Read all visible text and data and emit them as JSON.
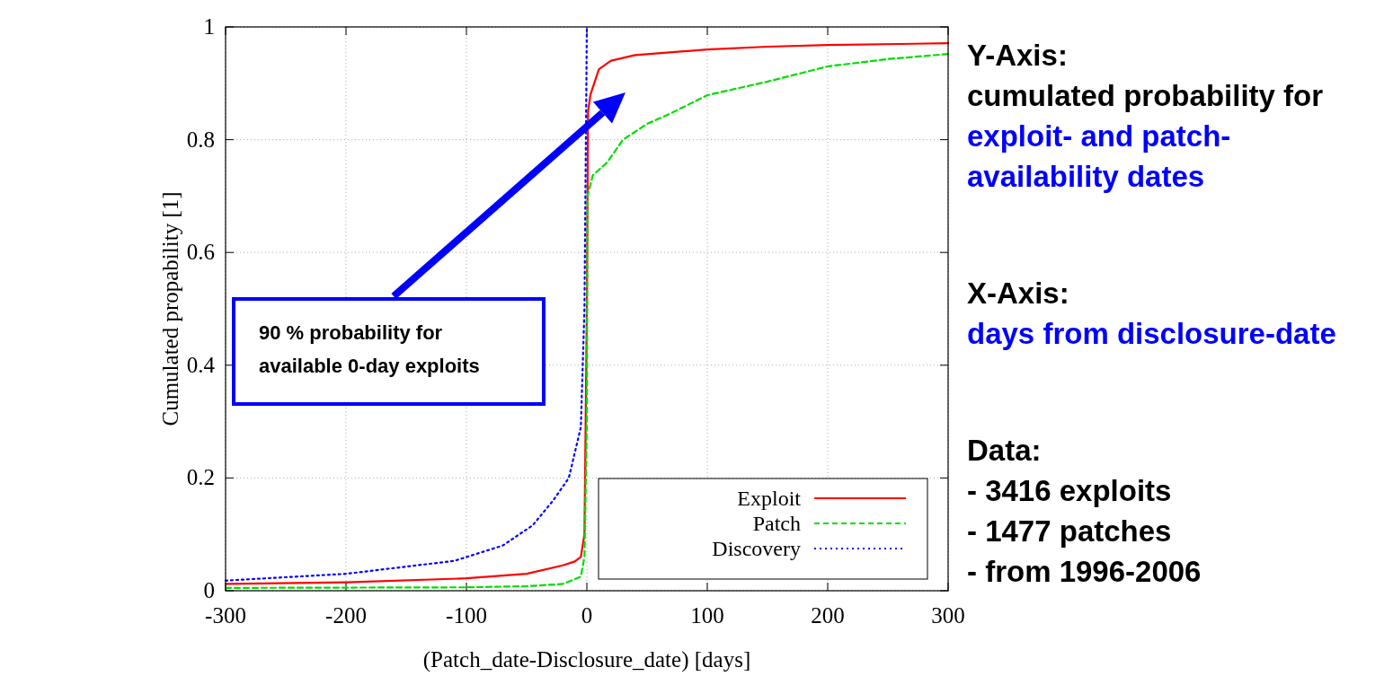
{
  "chart_data": {
    "type": "line",
    "xlabel": "(Patch_date-Disclosure_date) [days]",
    "ylabel": "Cumulated propability [1]",
    "xlim": [
      -300,
      300
    ],
    "xticks": [
      -300,
      -200,
      -100,
      0,
      100,
      200,
      300
    ],
    "ylim": [
      0,
      1
    ],
    "yticks": [
      0,
      0.2,
      0.4,
      0.6,
      0.8,
      1
    ],
    "grid": true,
    "legend": "bottom right",
    "series": [
      {
        "name": "Exploit",
        "color": "#ff0000",
        "line_style": "solid",
        "x": [
          -300,
          -200,
          -100,
          -50,
          -20,
          -10,
          -5,
          -2,
          0,
          1,
          3,
          10,
          20,
          40,
          100,
          150,
          200,
          300
        ],
        "values": [
          0.012,
          0.015,
          0.022,
          0.03,
          0.045,
          0.052,
          0.06,
          0.1,
          0.5,
          0.85,
          0.88,
          0.925,
          0.94,
          0.95,
          0.96,
          0.965,
          0.968,
          0.971
        ]
      },
      {
        "name": "Patch",
        "color": "#00dd00",
        "line_style": "dashed",
        "x": [
          -300,
          -100,
          -50,
          -20,
          -5,
          -2,
          0,
          0.5,
          5,
          17,
          30,
          50,
          70,
          100,
          150,
          200,
          250,
          300
        ],
        "values": [
          0.005,
          0.006,
          0.008,
          0.012,
          0.025,
          0.06,
          0.3,
          0.7,
          0.737,
          0.76,
          0.8,
          0.828,
          0.847,
          0.879,
          0.903,
          0.93,
          0.943,
          0.952
        ]
      },
      {
        "name": "Discovery",
        "color": "#0000ff",
        "line_style": "dotted",
        "x": [
          -300,
          -200,
          -110,
          -70,
          -45,
          -28,
          -15,
          -5,
          -2,
          0
        ],
        "values": [
          0.018,
          0.03,
          0.053,
          0.08,
          0.116,
          0.16,
          0.2,
          0.29,
          0.5,
          1
        ]
      }
    ],
    "annotations": [
      "90 % probability for available 0-day exploits",
      "Y-Axis:",
      "cumulated probability for",
      "exploit- and patch-availability dates",
      "X-Axis:",
      "days from disclosure-date",
      "Data:",
      "- 3416 exploits",
      "- 1477 patches",
      "- from 1996-2006"
    ]
  }
}
